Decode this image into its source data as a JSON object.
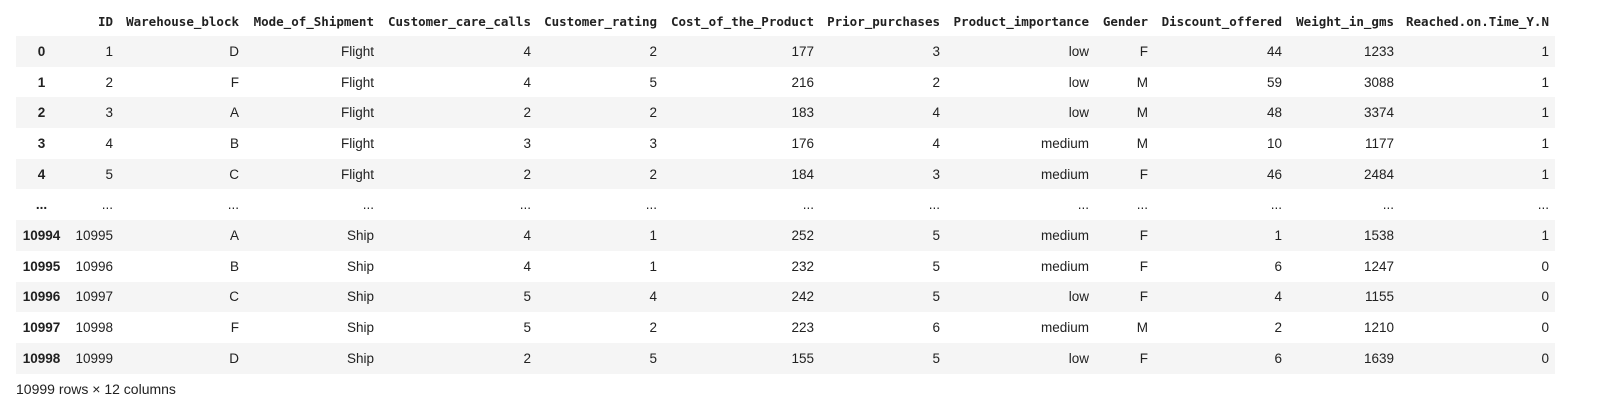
{
  "columns": [
    "",
    "ID",
    "Warehouse_block",
    "Mode_of_Shipment",
    "Customer_care_calls",
    "Customer_rating",
    "Cost_of_the_Product",
    "Prior_purchases",
    "Product_importance",
    "Gender",
    "Discount_offered",
    "Weight_in_gms",
    "Reached.on.Time_Y.N"
  ],
  "rows": [
    [
      "0",
      "1",
      "D",
      "Flight",
      "4",
      "2",
      "177",
      "3",
      "low",
      "F",
      "44",
      "1233",
      "1"
    ],
    [
      "1",
      "2",
      "F",
      "Flight",
      "4",
      "5",
      "216",
      "2",
      "low",
      "M",
      "59",
      "3088",
      "1"
    ],
    [
      "2",
      "3",
      "A",
      "Flight",
      "2",
      "2",
      "183",
      "4",
      "low",
      "M",
      "48",
      "3374",
      "1"
    ],
    [
      "3",
      "4",
      "B",
      "Flight",
      "3",
      "3",
      "176",
      "4",
      "medium",
      "M",
      "10",
      "1177",
      "1"
    ],
    [
      "4",
      "5",
      "C",
      "Flight",
      "2",
      "2",
      "184",
      "3",
      "medium",
      "F",
      "46",
      "2484",
      "1"
    ],
    [
      "...",
      "...",
      "...",
      "...",
      "...",
      "...",
      "...",
      "...",
      "...",
      "...",
      "...",
      "...",
      "..."
    ],
    [
      "10994",
      "10995",
      "A",
      "Ship",
      "4",
      "1",
      "252",
      "5",
      "medium",
      "F",
      "1",
      "1538",
      "1"
    ],
    [
      "10995",
      "10996",
      "B",
      "Ship",
      "4",
      "1",
      "232",
      "5",
      "medium",
      "F",
      "6",
      "1247",
      "0"
    ],
    [
      "10996",
      "10997",
      "C",
      "Ship",
      "5",
      "4",
      "242",
      "5",
      "low",
      "F",
      "4",
      "1155",
      "0"
    ],
    [
      "10997",
      "10998",
      "F",
      "Ship",
      "5",
      "2",
      "223",
      "6",
      "medium",
      "M",
      "2",
      "1210",
      "0"
    ],
    [
      "10998",
      "10999",
      "D",
      "Ship",
      "2",
      "5",
      "155",
      "5",
      "low",
      "F",
      "6",
      "1639",
      "0"
    ]
  ],
  "shape_text": "10999 rows × 12 columns"
}
